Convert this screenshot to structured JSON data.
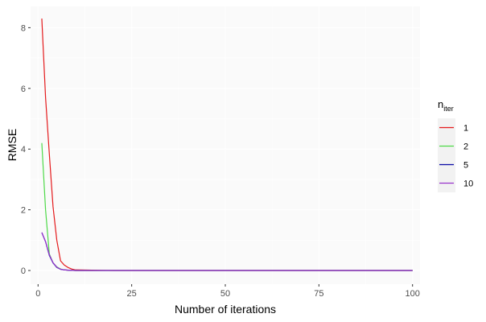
{
  "chart_data": {
    "type": "line",
    "title": "",
    "xlabel": "Number of iterations",
    "ylabel": "RMSE",
    "xlim": [
      -2,
      102
    ],
    "ylim": [
      -0.45,
      8.7
    ],
    "x_ticks": [
      0,
      25,
      50,
      75,
      100
    ],
    "x_tick_labels": [
      "0",
      "25",
      "50",
      "75",
      "100"
    ],
    "y_ticks": [
      0,
      2,
      4,
      6,
      8
    ],
    "y_tick_labels": [
      "0",
      "2",
      "4",
      "6",
      "8"
    ],
    "grid": true,
    "legend": {
      "position": "right",
      "title_main": "n",
      "title_sub": "iter"
    },
    "series": [
      {
        "name": "1",
        "color": "#e41a1c",
        "x": [
          1,
          2,
          3,
          4,
          5,
          6,
          7,
          8,
          9,
          10,
          20,
          30,
          40,
          50,
          60,
          70,
          80,
          90,
          100
        ],
        "y": [
          8.3,
          5.7,
          3.85,
          2.1,
          1.0,
          0.32,
          0.18,
          0.1,
          0.05,
          0.02,
          0.0,
          0.0,
          0.0,
          0.0,
          0.0,
          0.0,
          0.0,
          0.0,
          0.0
        ]
      },
      {
        "name": "2",
        "color": "#4dd948",
        "x": [
          1,
          2,
          3,
          4,
          5,
          6,
          7,
          8,
          10,
          20,
          100
        ],
        "y": [
          4.2,
          2.0,
          0.55,
          0.25,
          0.12,
          0.05,
          0.02,
          0.01,
          0.0,
          0.0,
          0.0
        ]
      },
      {
        "name": "5",
        "color": "#0a0aa6",
        "x": [
          1,
          2,
          3,
          4,
          5,
          6,
          7,
          8,
          10,
          20,
          100
        ],
        "y": [
          1.25,
          0.95,
          0.5,
          0.25,
          0.1,
          0.04,
          0.02,
          0.01,
          0.0,
          0.0,
          0.0
        ]
      },
      {
        "name": "10",
        "color": "#9933cc",
        "x": [
          1,
          2,
          3,
          4,
          5,
          6,
          7,
          8,
          10,
          20,
          100
        ],
        "y": [
          1.25,
          0.95,
          0.52,
          0.26,
          0.11,
          0.04,
          0.02,
          0.01,
          0.0,
          0.0,
          0.0
        ]
      }
    ]
  }
}
